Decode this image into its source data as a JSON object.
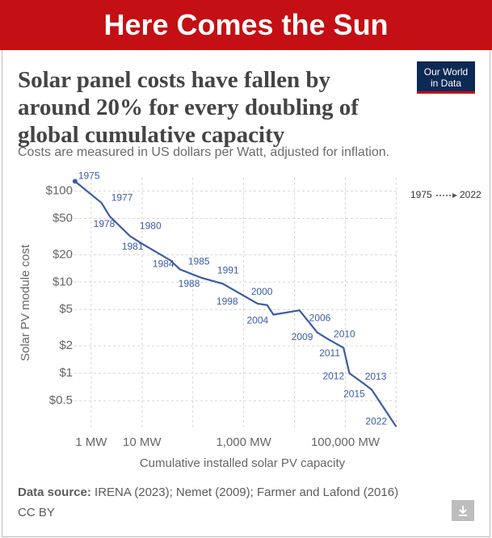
{
  "banner": "Here Comes the Sun",
  "logo": [
    "Our World",
    "in Data"
  ],
  "source_label": "Data source:",
  "source": "IRENA (2023); Nemet (2009); Farmer and Lafond (2016)",
  "license": "CC BY",
  "chart_data": {
    "type": "line",
    "title": "Solar panel costs have fallen by around 20% for every doubling of global cumulative capacity",
    "subtitle": "Costs are measured in US dollars per Watt, adjusted for inflation.",
    "x_label": "Cumulative installed solar PV capacity",
    "y_label": "Solar PV module cost",
    "log_x": true,
    "log_y": true,
    "grid": true,
    "xlim": [
      0.3,
      1100000
    ],
    "xticks": [
      {
        "value": 1,
        "label": "1 MW"
      },
      {
        "value": 10,
        "label": "10 MW"
      },
      {
        "value": 1000,
        "label": "1,000 MW"
      },
      {
        "value": 100000,
        "label": "100,000 MW"
      }
    ],
    "xgrid_minor": [
      100,
      10000,
      1000000
    ],
    "ylim": [
      0.25,
      140
    ],
    "yticks": [
      {
        "value": 100,
        "label": "$100"
      },
      {
        "value": 50,
        "label": "$50"
      },
      {
        "value": 20,
        "label": "$20"
      },
      {
        "value": 10,
        "label": "$10"
      },
      {
        "value": 5,
        "label": "$5"
      },
      {
        "value": 2,
        "label": "$2"
      },
      {
        "value": 1,
        "label": "$1"
      },
      {
        "value": 0.5,
        "label": "$0.5"
      }
    ],
    "series": [
      {
        "name": "Solar PV module cost",
        "color": "#3b5ca6",
        "years": [
          "1975",
          "1977",
          "1978",
          "1980",
          "1981",
          "1984",
          "1985",
          "1988",
          "1991",
          "1998",
          "2000",
          "2004",
          "2006",
          "2009",
          "2010",
          "2011",
          "2012",
          "2013",
          "2015",
          "2022"
        ],
        "x": [
          0.48,
          1.6,
          2.3,
          5.8,
          10,
          36,
          56,
          144,
          390,
          1880,
          2900,
          3850,
          12500,
          28000,
          44000,
          92000,
          120000,
          210000,
          330000,
          1000000
        ],
        "values": [
          128,
          74,
          53,
          32,
          26.4,
          17.4,
          13.8,
          11.2,
          9.6,
          5.8,
          5.6,
          4.4,
          4.9,
          2.8,
          2.4,
          1.9,
          1.0,
          0.8,
          0.66,
          0.26
        ]
      }
    ]
  }
}
